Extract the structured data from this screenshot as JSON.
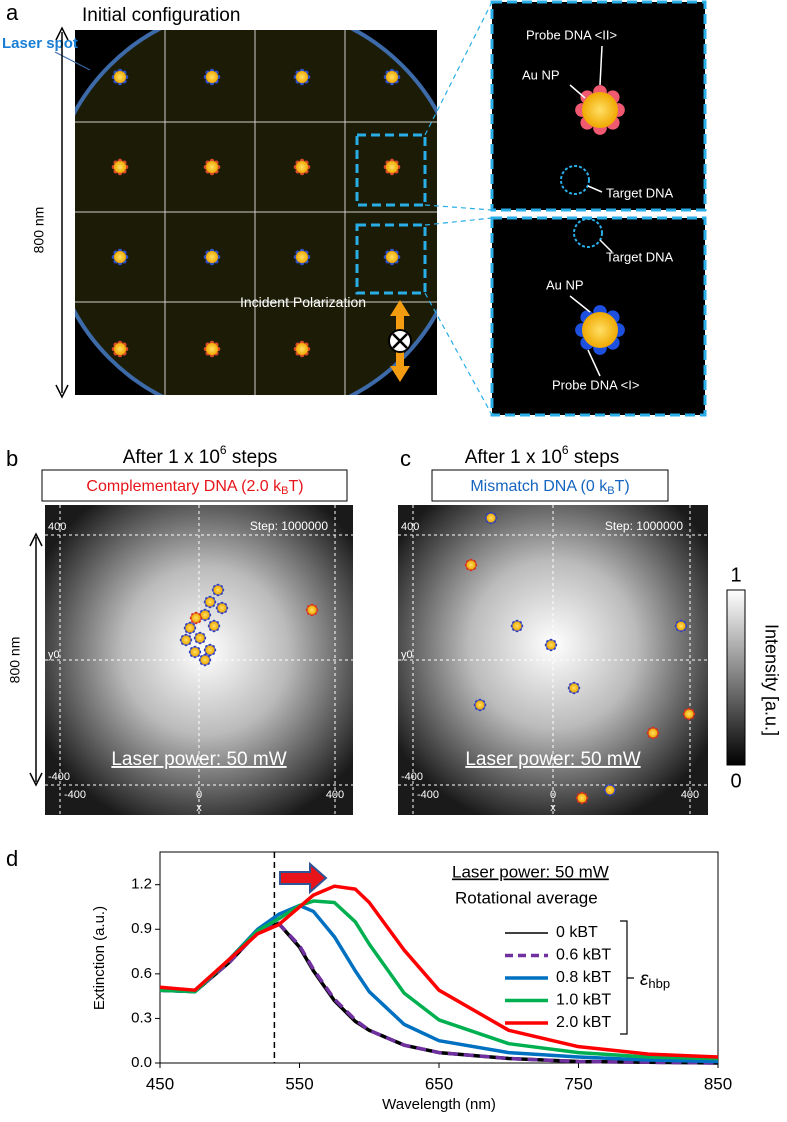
{
  "panel_a": {
    "letter": "a",
    "title": "Initial configuration",
    "laser_spot": "Laser spot",
    "scale": "800 nm",
    "polarization": "Incident Polarization",
    "inset_top": {
      "probe": "Probe DNA <II>",
      "np": "Au NP",
      "target": "Target DNA"
    },
    "inset_bottom": {
      "target": "Target DNA",
      "np": "Au NP",
      "probe": "Probe DNA <I>"
    }
  },
  "panel_b": {
    "letter": "b",
    "title": "After 1 x 10",
    "title_sup": "6",
    "title_end": " steps",
    "box": "Complementary DNA (2.0 k",
    "box_sub": "B",
    "box_end": "T)",
    "step": "Step: 1000000",
    "power": "Laser power: 50 mW",
    "scale": "800 nm",
    "y_top": "400",
    "y_mid": "y0",
    "y_bottom": "-400",
    "x_left": "-400",
    "x_mid": "0",
    "x_right": "400",
    "x_name": "x"
  },
  "panel_c": {
    "letter": "c",
    "title": "After 1 x 10",
    "title_sup": "6",
    "title_end": " steps",
    "box": "Mismatch DNA (0 k",
    "box_sub": "B",
    "box_end": "T)",
    "step": "Step: 1000000",
    "power": "Laser power: 50 mW",
    "y_top": "400",
    "y_mid": "y0",
    "y_bottom": "-400",
    "x_left": "-400",
    "x_mid": "0",
    "x_right": "400",
    "x_name": "x"
  },
  "colorbar": {
    "max": "1",
    "min": "0",
    "label": "Intensity [a.u.]"
  },
  "chart_data": {
    "type": "line",
    "letter": "d",
    "x_label": "Wavelength (nm)",
    "y_label": "Extinction (a.u.)",
    "annotations": [
      "Laser power: 50 mW",
      "Rotational average"
    ],
    "bracket_symbol": "ε",
    "bracket_subscript": "hbp",
    "laser_wavelength": 532,
    "x": [
      450,
      475,
      500,
      520,
      535,
      550,
      560,
      575,
      590,
      600,
      625,
      650,
      700,
      750,
      800,
      850
    ],
    "xlim": [
      450,
      850
    ],
    "xticks": [
      450,
      550,
      650,
      750,
      850
    ],
    "ylim": [
      0,
      1.42
    ],
    "yticks": [
      {
        "value": 0,
        "label": "0.0"
      },
      0.3,
      0.6,
      0.9,
      1.2
    ],
    "series": [
      {
        "name": "0 kBT",
        "color": "#000000",
        "dashed": false,
        "values": [
          0.49,
          0.48,
          0.68,
          0.88,
          0.94,
          0.78,
          0.62,
          0.42,
          0.28,
          0.22,
          0.12,
          0.07,
          0.03,
          0.01,
          0.005,
          0
        ]
      },
      {
        "name": "0.6 kBT",
        "color": "#7030a0",
        "dashed": true,
        "values": [
          0.49,
          0.48,
          0.68,
          0.88,
          0.94,
          0.79,
          0.63,
          0.43,
          0.29,
          0.22,
          0.12,
          0.07,
          0.03,
          0.01,
          0.005,
          0
        ]
      },
      {
        "name": "0.8 kBT",
        "color": "#0070c0",
        "dashed": false,
        "values": [
          0.49,
          0.48,
          0.7,
          0.9,
          1.0,
          1.06,
          1.02,
          0.85,
          0.62,
          0.48,
          0.26,
          0.15,
          0.07,
          0.04,
          0.02,
          0.01
        ]
      },
      {
        "name": "1.0 kBT",
        "color": "#00b050",
        "dashed": false,
        "values": [
          0.49,
          0.48,
          0.7,
          0.89,
          0.97,
          1.06,
          1.09,
          1.08,
          0.95,
          0.8,
          0.47,
          0.29,
          0.13,
          0.07,
          0.04,
          0.03
        ]
      },
      {
        "name": "2.0 kBT",
        "color": "#ff0000",
        "dashed": false,
        "values": [
          0.51,
          0.49,
          0.7,
          0.87,
          0.93,
          1.05,
          1.13,
          1.19,
          1.17,
          1.08,
          0.76,
          0.49,
          0.22,
          0.11,
          0.06,
          0.04
        ]
      }
    ]
  }
}
